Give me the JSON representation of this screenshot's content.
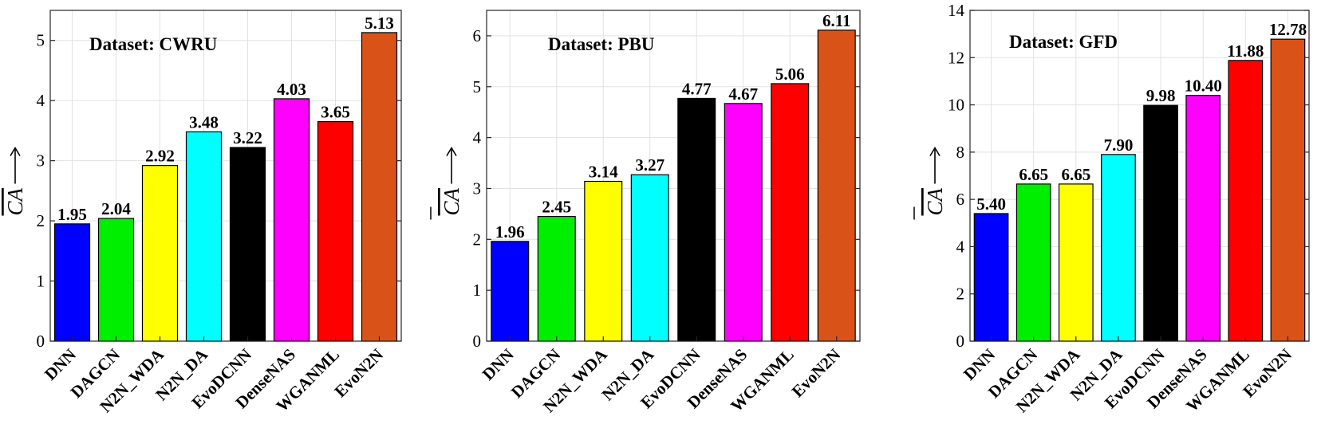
{
  "colors": [
    "#0000ff",
    "#00ee00",
    "#ffff00",
    "#00ffff",
    "#000000",
    "#ff00ff",
    "#ff0000",
    "#d95319"
  ],
  "chart_data": [
    {
      "type": "bar",
      "annotation": "Dataset: CWRU",
      "ylabel": "CA",
      "categories": [
        "DNN",
        "DAGCN",
        "N2N_WDA",
        "N2N_DA",
        "EvoDCNN",
        "DenseNAS",
        "WGANML",
        "EvoN2N"
      ],
      "values": [
        1.95,
        2.04,
        2.92,
        3.48,
        3.22,
        4.03,
        3.65,
        5.13
      ],
      "data_labels": [
        "1.95",
        "2.04",
        "2.92",
        "3.48",
        "3.22",
        "4.03",
        "3.65",
        "5.13"
      ],
      "ylim": [
        0,
        5.5
      ],
      "yticks": [
        0,
        1,
        2,
        3,
        4,
        5
      ],
      "grid": true
    },
    {
      "type": "bar",
      "annotation": "Dataset: PBU",
      "ylabel": "CA",
      "categories": [
        "DNN",
        "DAGCN",
        "N2N_WDA",
        "N2N_DA",
        "EvoDCNN",
        "DenseNAS",
        "WGANML",
        "EvoN2N"
      ],
      "values": [
        1.96,
        2.45,
        3.14,
        3.27,
        4.77,
        4.67,
        5.06,
        6.11
      ],
      "data_labels": [
        "1.96",
        "2.45",
        "3.14",
        "3.27",
        "4.77",
        "4.67",
        "5.06",
        "6.11"
      ],
      "ylim": [
        0,
        6.5
      ],
      "yticks": [
        0,
        1,
        2,
        3,
        4,
        5,
        6
      ],
      "grid": true
    },
    {
      "type": "bar",
      "annotation": "Dataset: GFD",
      "ylabel": "CA",
      "categories": [
        "DNN",
        "DAGCN",
        "N2N_WDA",
        "N2N_DA",
        "EvoDCNN",
        "DenseNAS",
        "WGANML",
        "EvoN2N"
      ],
      "values": [
        5.4,
        6.65,
        6.65,
        7.9,
        9.98,
        10.4,
        11.88,
        12.78
      ],
      "data_labels": [
        "5.40",
        "6.65",
        "6.65",
        "7.90",
        "9.98",
        "10.40",
        "11.88",
        "12.78"
      ],
      "ylim": [
        0,
        14
      ],
      "yticks": [
        0,
        2,
        4,
        6,
        8,
        10,
        12,
        14
      ],
      "grid": true
    }
  ]
}
